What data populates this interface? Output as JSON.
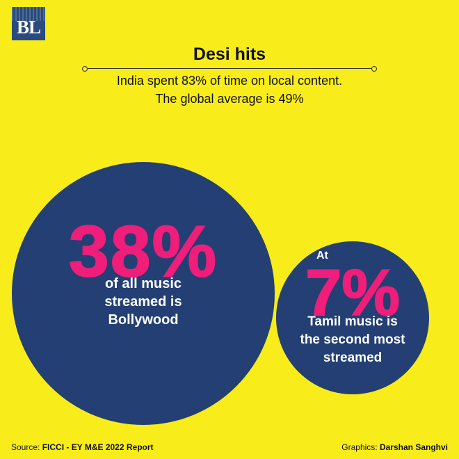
{
  "logo": {
    "text": "BL"
  },
  "header": {
    "title": "Desi hits",
    "subtitle_line1": "India spent 83% of time on local content.",
    "subtitle_line2": "The global average is 49%"
  },
  "chart_data": {
    "type": "bubble",
    "title": "Desi hits",
    "items": [
      {
        "value_label": "38%",
        "value": 38,
        "prefix": "",
        "description_lines": [
          "of all music",
          "streamed is",
          "Bollywood"
        ]
      },
      {
        "value_label": "7%",
        "value": 7,
        "prefix": "At",
        "description_lines": [
          "Tamil music is",
          "the second most",
          "streamed"
        ]
      }
    ]
  },
  "colors": {
    "background": "#f8ec1b",
    "circle": "#233f73",
    "accent": "#ee1e7a"
  },
  "footer": {
    "source_label": "Source:",
    "source_value": "FICCI - EY M&E 2022 Report",
    "graphics_label": "Graphics:",
    "graphics_value": "Darshan Sanghvi"
  }
}
